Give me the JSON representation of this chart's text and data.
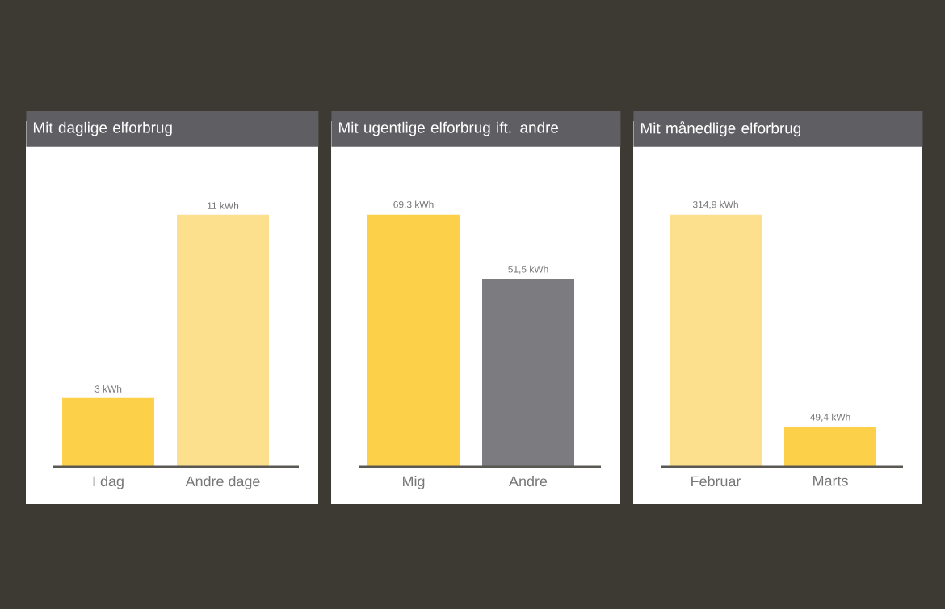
{
  "chart_data": [
    {
      "type": "bar",
      "title": "Mit daglige elforbrug",
      "categories": [
        "I dag",
        "Andre dage"
      ],
      "values": [
        3,
        11
      ],
      "colors": [
        "#fdd04a",
        "#fde08e"
      ],
      "value_labels": [
        "3 kWh",
        "11 kWh"
      ]
    },
    {
      "type": "bar",
      "title": "Mit ugentlige elforbrug ift. andre",
      "categories": [
        "Mig",
        "Andre"
      ],
      "values": [
        69.3,
        51.5
      ],
      "colors": [
        "#fdd04a",
        "#7b7b80"
      ],
      "value_labels": [
        "69,3 kWh",
        "51,5 kWh"
      ]
    },
    {
      "type": "bar",
      "title": "Mit månedlige elforbrug",
      "categories": [
        "Februar",
        "Marts"
      ],
      "values": [
        314.9,
        49.4
      ],
      "colors": [
        "#fde08e",
        "#fdd04a"
      ],
      "value_labels": [
        "314,9 kWh",
        "49,4 kWh"
      ]
    }
  ]
}
